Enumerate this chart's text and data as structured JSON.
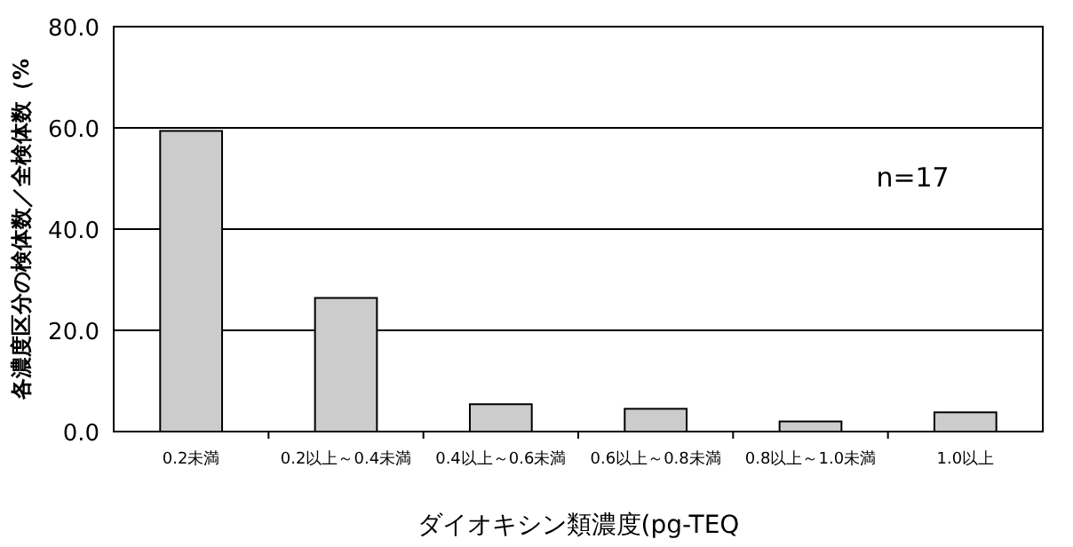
{
  "chart_data": {
    "type": "bar",
    "xlabel": "ダイオキシン類濃度(pg-TEQ",
    "ylabel": "各濃度区分の検体数／全検体数（%",
    "categories": [
      "0.2未満",
      "0.2以上～0.4未満",
      "0.4以上～0.6未満",
      "0.6以上～0.8未満",
      "0.8以上～1.0未満",
      "1.0以上"
    ],
    "values": [
      59.4,
      26.4,
      5.4,
      4.5,
      2.0,
      3.8
    ],
    "color": "#cccccc",
    "ylim": [
      0,
      80
    ],
    "yticks": [
      {
        "value": 0,
        "label": "0.0"
      },
      {
        "value": 20,
        "label": "20.0"
      },
      {
        "value": 40,
        "label": "40.0"
      },
      {
        "value": 60,
        "label": "60.0"
      },
      {
        "value": 80,
        "label": "80.0"
      }
    ],
    "grid": "y",
    "annotations": [
      "n=17"
    ]
  }
}
